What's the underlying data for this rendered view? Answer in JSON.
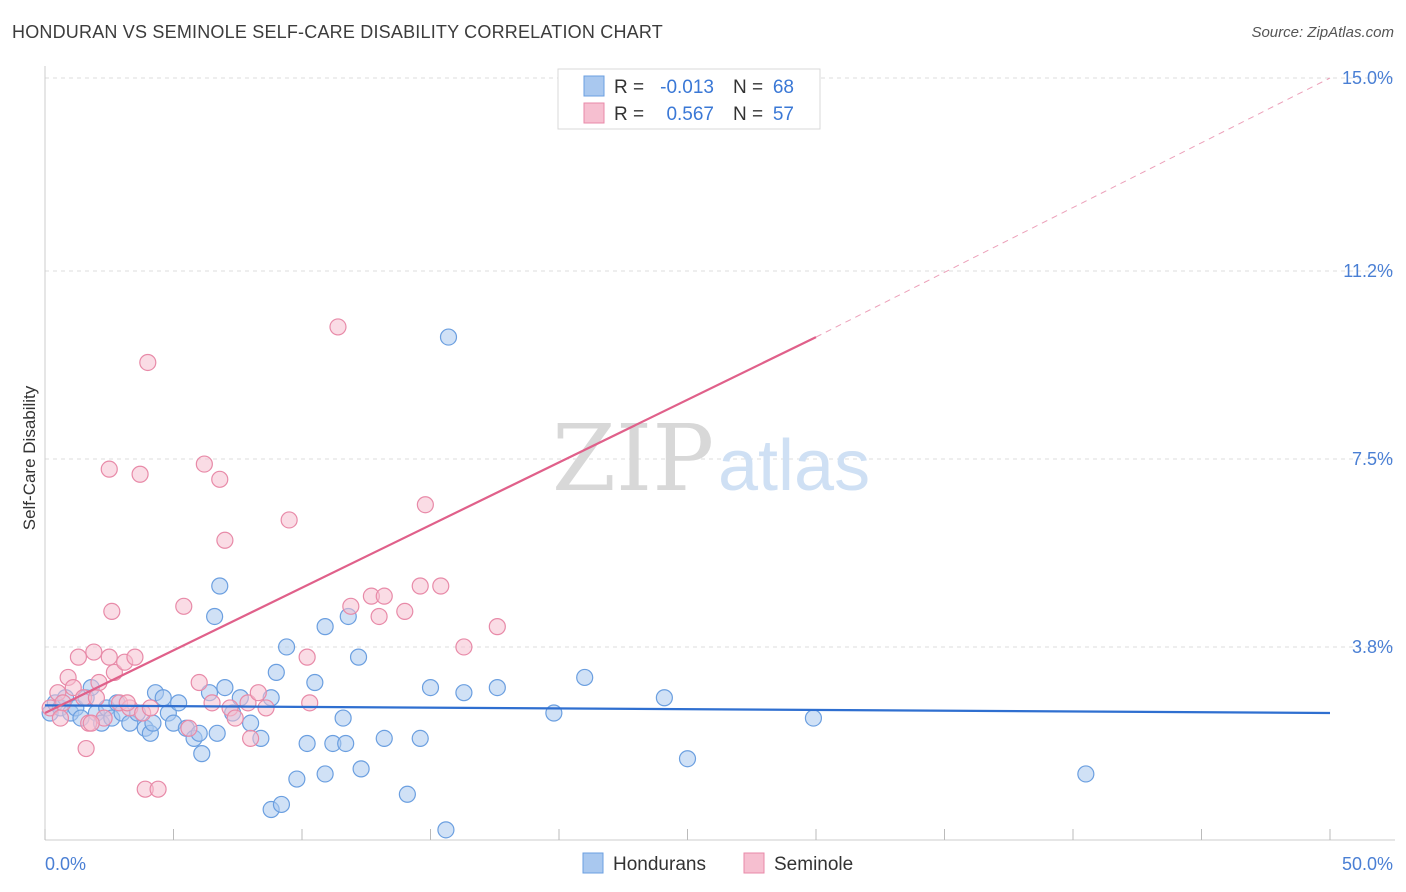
{
  "title": "HONDURAN VS SEMINOLE SELF-CARE DISABILITY CORRELATION CHART",
  "source": "Source: ZipAtlas.com",
  "watermark": {
    "zip": "ZIP",
    "atlas": "atlas"
  },
  "legend_box": {
    "rows": [
      {
        "r_label": "R =",
        "r_value": "-0.013",
        "n_label": "N =",
        "n_value": "68"
      },
      {
        "r_label": "R =",
        "r_value": "0.567",
        "n_label": "N =",
        "n_value": "57"
      }
    ]
  },
  "colors": {
    "hondurans_fill": "#a9c8ef",
    "hondurans_stroke": "#6b9fe0",
    "hondurans_line": "#2f6fd0",
    "seminole_fill": "#f6bfd0",
    "seminole_stroke": "#e88aa8",
    "seminole_line": "#e0608a",
    "tick_text": "#4a7fd4",
    "grid": "#dddddd"
  },
  "chart_data": {
    "type": "scatter",
    "xlabel": "",
    "ylabel": "Self-Care Disability",
    "xlim": [
      0,
      50
    ],
    "ylim": [
      0,
      15
    ],
    "x_tick_labels": [
      "0.0%",
      "50.0%"
    ],
    "y_ticks": [
      3.8,
      7.5,
      11.2,
      15.0
    ],
    "y_tick_labels": [
      "3.8%",
      "7.5%",
      "11.2%",
      "15.0%"
    ],
    "grid": true,
    "legend_position": "top-center",
    "series": [
      {
        "name": "Hondurans",
        "R": -0.013,
        "N": 68,
        "trend": {
          "x": [
            0,
            50
          ],
          "y": [
            2.65,
            2.5
          ]
        },
        "points": [
          [
            0.2,
            2.5
          ],
          [
            0.4,
            2.7
          ],
          [
            0.6,
            2.6
          ],
          [
            0.8,
            2.8
          ],
          [
            1.0,
            2.5
          ],
          [
            1.2,
            2.6
          ],
          [
            1.4,
            2.4
          ],
          [
            1.6,
            2.8
          ],
          [
            1.8,
            3.0
          ],
          [
            2.0,
            2.5
          ],
          [
            2.2,
            2.3
          ],
          [
            2.4,
            2.6
          ],
          [
            2.6,
            2.4
          ],
          [
            2.8,
            2.7
          ],
          [
            3.0,
            2.5
          ],
          [
            3.3,
            2.3
          ],
          [
            3.6,
            2.5
          ],
          [
            3.9,
            2.2
          ],
          [
            4.1,
            2.1
          ],
          [
            4.3,
            2.9
          ],
          [
            4.6,
            2.8
          ],
          [
            4.8,
            2.5
          ],
          [
            5.0,
            2.3
          ],
          [
            5.2,
            2.7
          ],
          [
            5.5,
            2.2
          ],
          [
            5.8,
            2.0
          ],
          [
            6.0,
            2.1
          ],
          [
            6.4,
            2.9
          ],
          [
            6.6,
            4.4
          ],
          [
            6.8,
            5.0
          ],
          [
            7.0,
            3.0
          ],
          [
            7.3,
            2.5
          ],
          [
            7.6,
            2.8
          ],
          [
            8.0,
            2.3
          ],
          [
            8.4,
            2.0
          ],
          [
            8.8,
            2.8
          ],
          [
            9.0,
            3.3
          ],
          [
            9.4,
            3.8
          ],
          [
            9.8,
            1.2
          ],
          [
            10.2,
            1.9
          ],
          [
            10.5,
            3.1
          ],
          [
            10.9,
            4.2
          ],
          [
            11.2,
            1.9
          ],
          [
            11.6,
            2.4
          ],
          [
            11.8,
            4.4
          ],
          [
            12.2,
            3.6
          ],
          [
            13.2,
            2.0
          ],
          [
            14.1,
            0.9
          ],
          [
            15.0,
            3.0
          ],
          [
            16.3,
            2.9
          ],
          [
            17.6,
            3.0
          ],
          [
            19.8,
            2.5
          ],
          [
            21.0,
            3.2
          ],
          [
            24.1,
            2.8
          ],
          [
            25.0,
            1.6
          ],
          [
            29.9,
            2.4
          ],
          [
            40.5,
            1.3
          ],
          [
            15.7,
            9.9
          ],
          [
            12.3,
            1.4
          ],
          [
            11.7,
            1.9
          ],
          [
            10.9,
            1.3
          ],
          [
            6.1,
            1.7
          ],
          [
            6.7,
            2.1
          ],
          [
            8.8,
            0.6
          ],
          [
            9.2,
            0.7
          ],
          [
            14.6,
            2.0
          ],
          [
            15.6,
            0.2
          ],
          [
            4.2,
            2.3
          ]
        ]
      },
      {
        "name": "Seminole",
        "R": 0.567,
        "N": 57,
        "trend": {
          "x": [
            0,
            30
          ],
          "y": [
            2.5,
            9.9
          ]
        },
        "trend_dashed_to": {
          "x": 50,
          "y": 15.0
        },
        "points": [
          [
            0.2,
            2.6
          ],
          [
            0.5,
            2.9
          ],
          [
            0.7,
            2.7
          ],
          [
            0.9,
            3.2
          ],
          [
            1.1,
            3.0
          ],
          [
            1.3,
            3.6
          ],
          [
            1.5,
            2.8
          ],
          [
            1.7,
            2.3
          ],
          [
            1.9,
            3.7
          ],
          [
            2.1,
            3.1
          ],
          [
            2.3,
            2.4
          ],
          [
            2.5,
            3.6
          ],
          [
            2.7,
            3.3
          ],
          [
            2.9,
            2.7
          ],
          [
            3.1,
            3.5
          ],
          [
            3.3,
            2.6
          ],
          [
            3.5,
            3.6
          ],
          [
            3.8,
            2.5
          ],
          [
            4.1,
            2.6
          ],
          [
            2.6,
            4.5
          ],
          [
            2.5,
            7.3
          ],
          [
            3.7,
            7.2
          ],
          [
            4.0,
            9.4
          ],
          [
            5.4,
            4.6
          ],
          [
            6.0,
            3.1
          ],
          [
            6.5,
            2.7
          ],
          [
            7.0,
            5.9
          ],
          [
            7.2,
            2.6
          ],
          [
            7.9,
            2.7
          ],
          [
            8.3,
            2.9
          ],
          [
            8.6,
            2.6
          ],
          [
            9.5,
            6.3
          ],
          [
            10.2,
            3.6
          ],
          [
            11.4,
            10.1
          ],
          [
            11.9,
            4.6
          ],
          [
            12.7,
            4.8
          ],
          [
            13.2,
            4.8
          ],
          [
            14.0,
            4.5
          ],
          [
            14.6,
            5.0
          ],
          [
            14.8,
            6.6
          ],
          [
            15.4,
            5.0
          ],
          [
            16.3,
            3.8
          ],
          [
            17.6,
            4.2
          ],
          [
            3.9,
            1.0
          ],
          [
            4.4,
            1.0
          ],
          [
            1.6,
            1.8
          ],
          [
            1.8,
            2.3
          ],
          [
            3.2,
            2.7
          ],
          [
            5.6,
            2.2
          ],
          [
            8.0,
            2.0
          ],
          [
            6.2,
            7.4
          ],
          [
            6.8,
            7.1
          ],
          [
            10.3,
            2.7
          ],
          [
            0.6,
            2.4
          ],
          [
            2.0,
            2.8
          ],
          [
            13.0,
            4.4
          ],
          [
            7.4,
            2.4
          ]
        ]
      }
    ]
  }
}
